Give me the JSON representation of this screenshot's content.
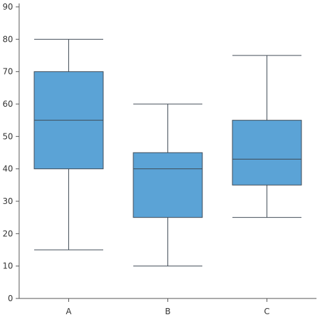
{
  "chart_data": {
    "type": "box",
    "categories": [
      "A",
      "B",
      "C"
    ],
    "series": [
      {
        "boxes": [
          {
            "category": "A",
            "min": 15,
            "q1": 40,
            "median": 55,
            "q3": 70,
            "max": 80
          },
          {
            "category": "B",
            "min": 10,
            "q1": 25,
            "median": 40,
            "q3": 45,
            "max": 60
          },
          {
            "category": "C",
            "min": 25,
            "q1": 35,
            "median": 43,
            "q3": 55,
            "max": 75
          }
        ]
      }
    ],
    "y_ticks": [
      "0",
      "10",
      "20",
      "30",
      "40",
      "50",
      "60",
      "70",
      "80",
      "90"
    ],
    "ylim": [
      0,
      90
    ],
    "grid": false,
    "title": "",
    "xlabel": "",
    "ylabel": ""
  },
  "colors": {
    "box_fill": "#5ba3d6",
    "box_stroke": "#3f4a55",
    "axis": "#555555"
  }
}
